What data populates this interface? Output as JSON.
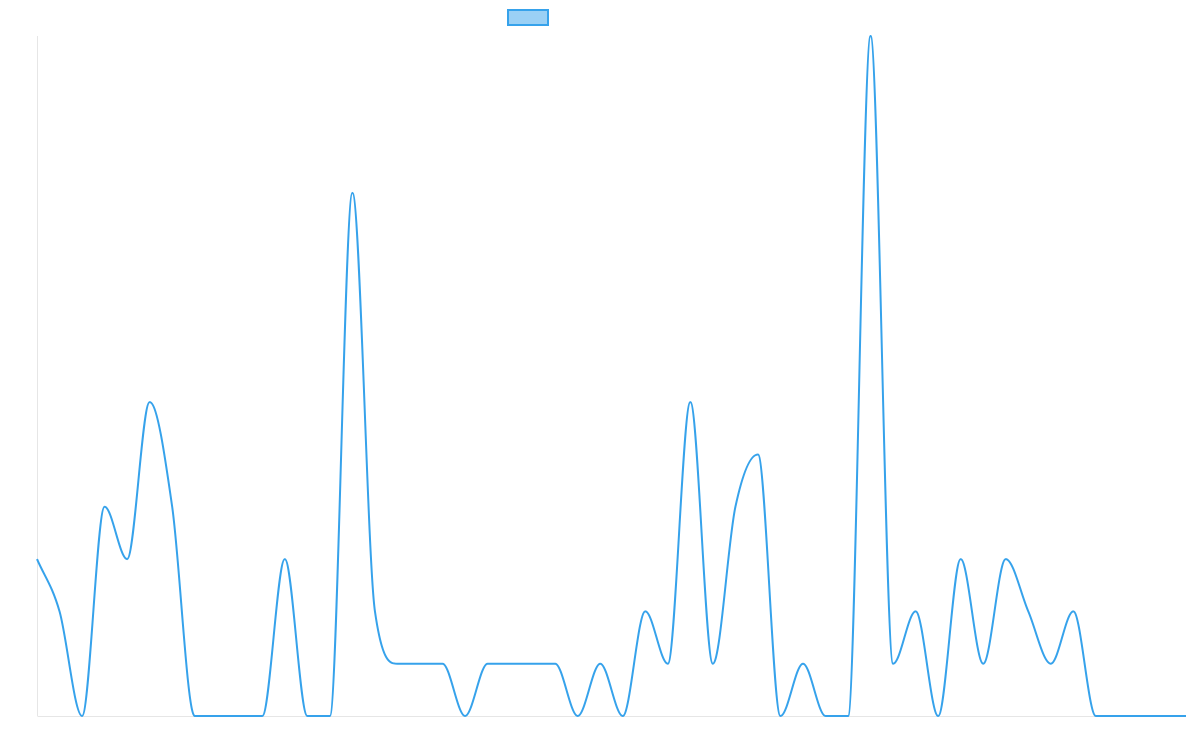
{
  "chart_data": {
    "type": "line",
    "title": "",
    "xlabel": "",
    "ylabel": "",
    "legend": {
      "position": "top-center",
      "entries": [
        {
          "label": "",
          "color": "#36a2eb",
          "fill": "#9ad0f5"
        }
      ]
    },
    "grid": false,
    "ylim": [
      0,
      13
    ],
    "series": [
      {
        "name": "",
        "color": "#36a2eb",
        "values": [
          3,
          2,
          0,
          4,
          3,
          6,
          4,
          0,
          0,
          0,
          0,
          3,
          0,
          0,
          10,
          2,
          1,
          1,
          1,
          0,
          1,
          1,
          1,
          1,
          0,
          1,
          0,
          2,
          1,
          6,
          1,
          4,
          5,
          0,
          1,
          0,
          0,
          13,
          1,
          2,
          0,
          3,
          1,
          3,
          2,
          1,
          2,
          0,
          0,
          0,
          0,
          0
        ]
      }
    ]
  }
}
